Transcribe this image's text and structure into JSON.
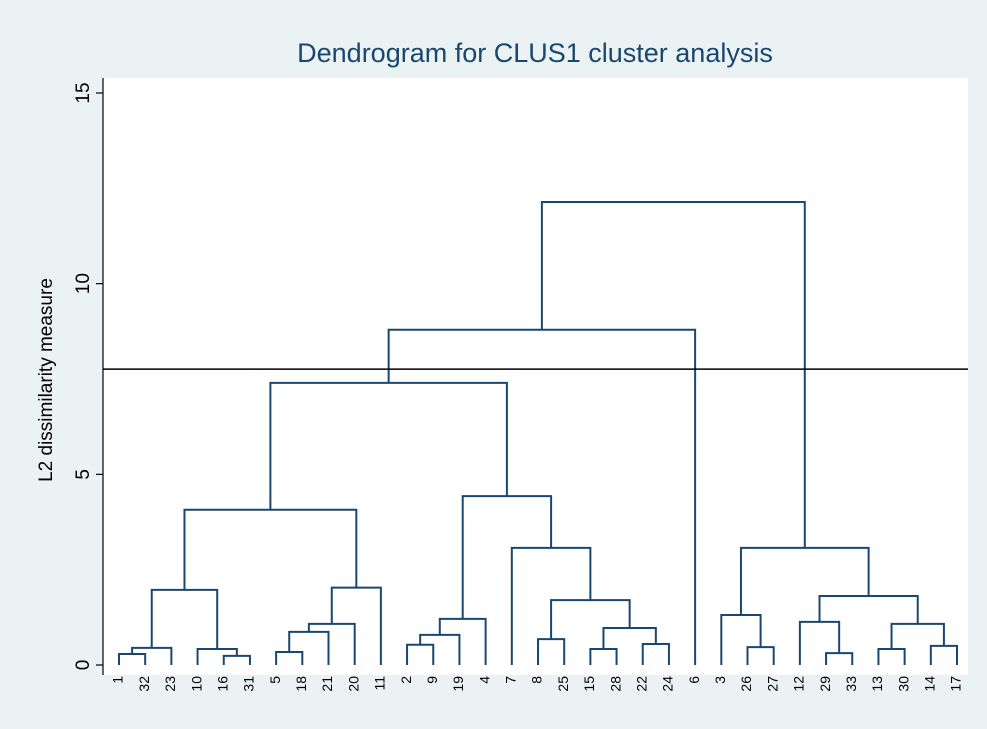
{
  "chart_data": {
    "type": "dendrogram",
    "title": "Dendrogram for CLUS1 cluster analysis",
    "y_label": "L2 dissimilarity measure",
    "ylim": [
      0,
      15
    ],
    "yticks": [
      0,
      5,
      10,
      15
    ],
    "color": "#1a476f",
    "reference_line": 7.76,
    "tree": {
      "height": 12.14,
      "children": [
        {
          "height": 8.79,
          "children": [
            {
              "height": 7.4,
              "children": [
                {
                  "height": 4.07,
                  "children": [
                    {
                      "height": 1.97,
                      "children": [
                        {
                          "height": 0.45,
                          "children": [
                            {
                              "height": 0.29,
                              "children": [
                                "1",
                                "32"
                              ]
                            },
                            "23"
                          ]
                        },
                        {
                          "height": 0.42,
                          "children": [
                            "10",
                            {
                              "height": 0.24,
                              "children": [
                                "16",
                                "31"
                              ]
                            }
                          ]
                        }
                      ]
                    },
                    {
                      "height": 2.03,
                      "children": [
                        {
                          "height": 1.08,
                          "children": [
                            {
                              "height": 0.87,
                              "children": [
                                {
                                  "height": 0.34,
                                  "children": [
                                    "5",
                                    "18"
                                  ]
                                },
                                "21"
                              ]
                            },
                            "20"
                          ]
                        },
                        "11"
                      ]
                    }
                  ]
                },
                {
                  "height": 4.43,
                  "children": [
                    {
                      "height": 1.21,
                      "children": [
                        {
                          "height": 0.79,
                          "children": [
                            {
                              "height": 0.53,
                              "children": [
                                "2",
                                "9"
                              ]
                            },
                            "19"
                          ]
                        },
                        "4"
                      ]
                    },
                    {
                      "height": 3.07,
                      "children": [
                        "7",
                        {
                          "height": 1.7,
                          "children": [
                            {
                              "height": 0.68,
                              "children": [
                                "8",
                                "25"
                              ]
                            },
                            {
                              "height": 0.97,
                              "children": [
                                {
                                  "height": 0.42,
                                  "children": [
                                    "15",
                                    "28"
                                  ]
                                },
                                {
                                  "height": 0.55,
                                  "children": [
                                    "22",
                                    "24"
                                  ]
                                }
                              ]
                            }
                          ]
                        }
                      ]
                    }
                  ]
                }
              ]
            },
            "6"
          ]
        },
        {
          "height": 3.07,
          "children": [
            {
              "height": 1.31,
              "children": [
                "3",
                {
                  "height": 0.47,
                  "children": [
                    "26",
                    "27"
                  ]
                }
              ]
            },
            {
              "height": 1.81,
              "children": [
                {
                  "height": 1.13,
                  "children": [
                    "12",
                    {
                      "height": 0.31,
                      "children": [
                        "29",
                        "33"
                      ]
                    }
                  ]
                },
                {
                  "height": 1.08,
                  "children": [
                    {
                      "height": 0.42,
                      "children": [
                        "13",
                        "30"
                      ]
                    },
                    {
                      "height": 0.5,
                      "children": [
                        "14",
                        "17"
                      ]
                    }
                  ]
                }
              ]
            }
          ]
        }
      ]
    }
  }
}
